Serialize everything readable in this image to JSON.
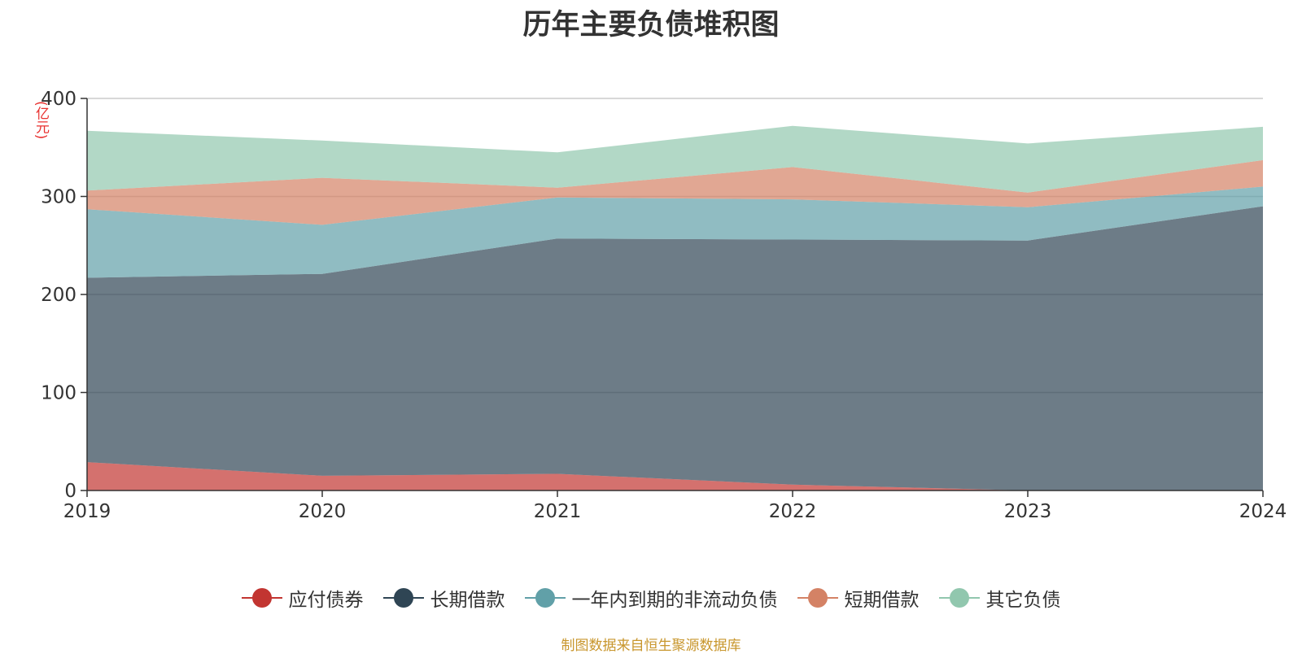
{
  "chart_data": {
    "type": "area",
    "stacked": true,
    "title": "历年主要负债堆积图",
    "unit_label": "(亿元)",
    "xlabel": "",
    "ylabel": "(亿元)",
    "categories": [
      "2019",
      "2020",
      "2021",
      "2022",
      "2023",
      "2024"
    ],
    "ylim": [
      0,
      400
    ],
    "yticks": [
      0,
      100,
      200,
      300,
      400
    ],
    "legend_position": "bottom",
    "series": [
      {
        "name": "应付债券",
        "color": "#c23531",
        "values": [
          29,
          15,
          17,
          6,
          0,
          0
        ]
      },
      {
        "name": "长期借款",
        "color": "#2f4554",
        "values": [
          188,
          206,
          240,
          250,
          255,
          290
        ]
      },
      {
        "name": "一年内到期的非流动负债",
        "color": "#61a0a8",
        "values": [
          70,
          50,
          42,
          41,
          34,
          20
        ]
      },
      {
        "name": "短期借款",
        "color": "#d48265",
        "values": [
          19,
          48,
          10,
          33,
          15,
          27
        ]
      },
      {
        "name": "其它负债",
        "color": "#91c7ae",
        "values": [
          61,
          38,
          36,
          42,
          50,
          34
        ]
      }
    ],
    "source": "制图数据来自恒生聚源数据库"
  }
}
